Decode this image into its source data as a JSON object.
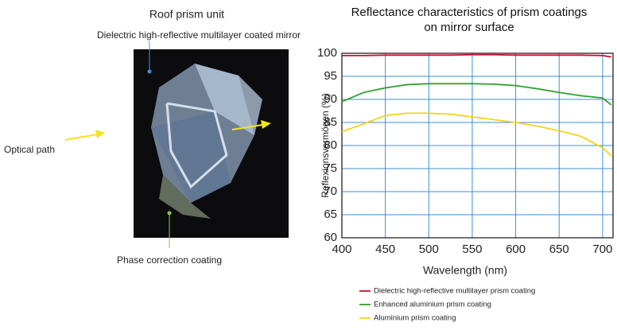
{
  "diagram": {
    "title": "Roof prism unit",
    "mirror_label": "Dielectric high-reflective multilayer coated mirror",
    "path_label": "Optical path",
    "coating_label": "Phase correction coating"
  },
  "chart_data": {
    "type": "line",
    "title": "Reflectance characteristics of prism coatings on mirror surface",
    "x_label": "Wavelength (nm)",
    "y_label": "Reflexionsvermögen (%)",
    "x": [
      400,
      425,
      450,
      475,
      500,
      525,
      550,
      575,
      600,
      625,
      650,
      675,
      700,
      710
    ],
    "series": [
      {
        "name": "Dielectric high-reflective multilayer prism coating",
        "color": "#c8102e",
        "values": [
          99.5,
          99.5,
          99.6,
          99.6,
          99.6,
          99.6,
          99.7,
          99.7,
          99.6,
          99.6,
          99.6,
          99.6,
          99.5,
          99.2
        ]
      },
      {
        "name": "Enhanced aluminium prism coating",
        "color": "#2ca02c",
        "values": [
          89.5,
          91.5,
          92.5,
          93.2,
          93.4,
          93.4,
          93.4,
          93.3,
          93,
          92.3,
          91.5,
          90.8,
          90.3,
          88.8
        ]
      },
      {
        "name": "Aluminium prism coating",
        "color": "#f5d21b",
        "values": [
          83,
          84.7,
          86.5,
          87,
          87,
          86.8,
          86.2,
          85.6,
          85,
          84.2,
          83.2,
          82,
          79.5,
          77.8
        ]
      }
    ],
    "xlim": [
      400,
      712
    ],
    "ylim": [
      60,
      100
    ],
    "xticks": [
      400,
      450,
      500,
      550,
      600,
      650,
      700
    ],
    "yticks": [
      60,
      65,
      70,
      75,
      80,
      85,
      90,
      95,
      100
    ],
    "grid": true
  }
}
